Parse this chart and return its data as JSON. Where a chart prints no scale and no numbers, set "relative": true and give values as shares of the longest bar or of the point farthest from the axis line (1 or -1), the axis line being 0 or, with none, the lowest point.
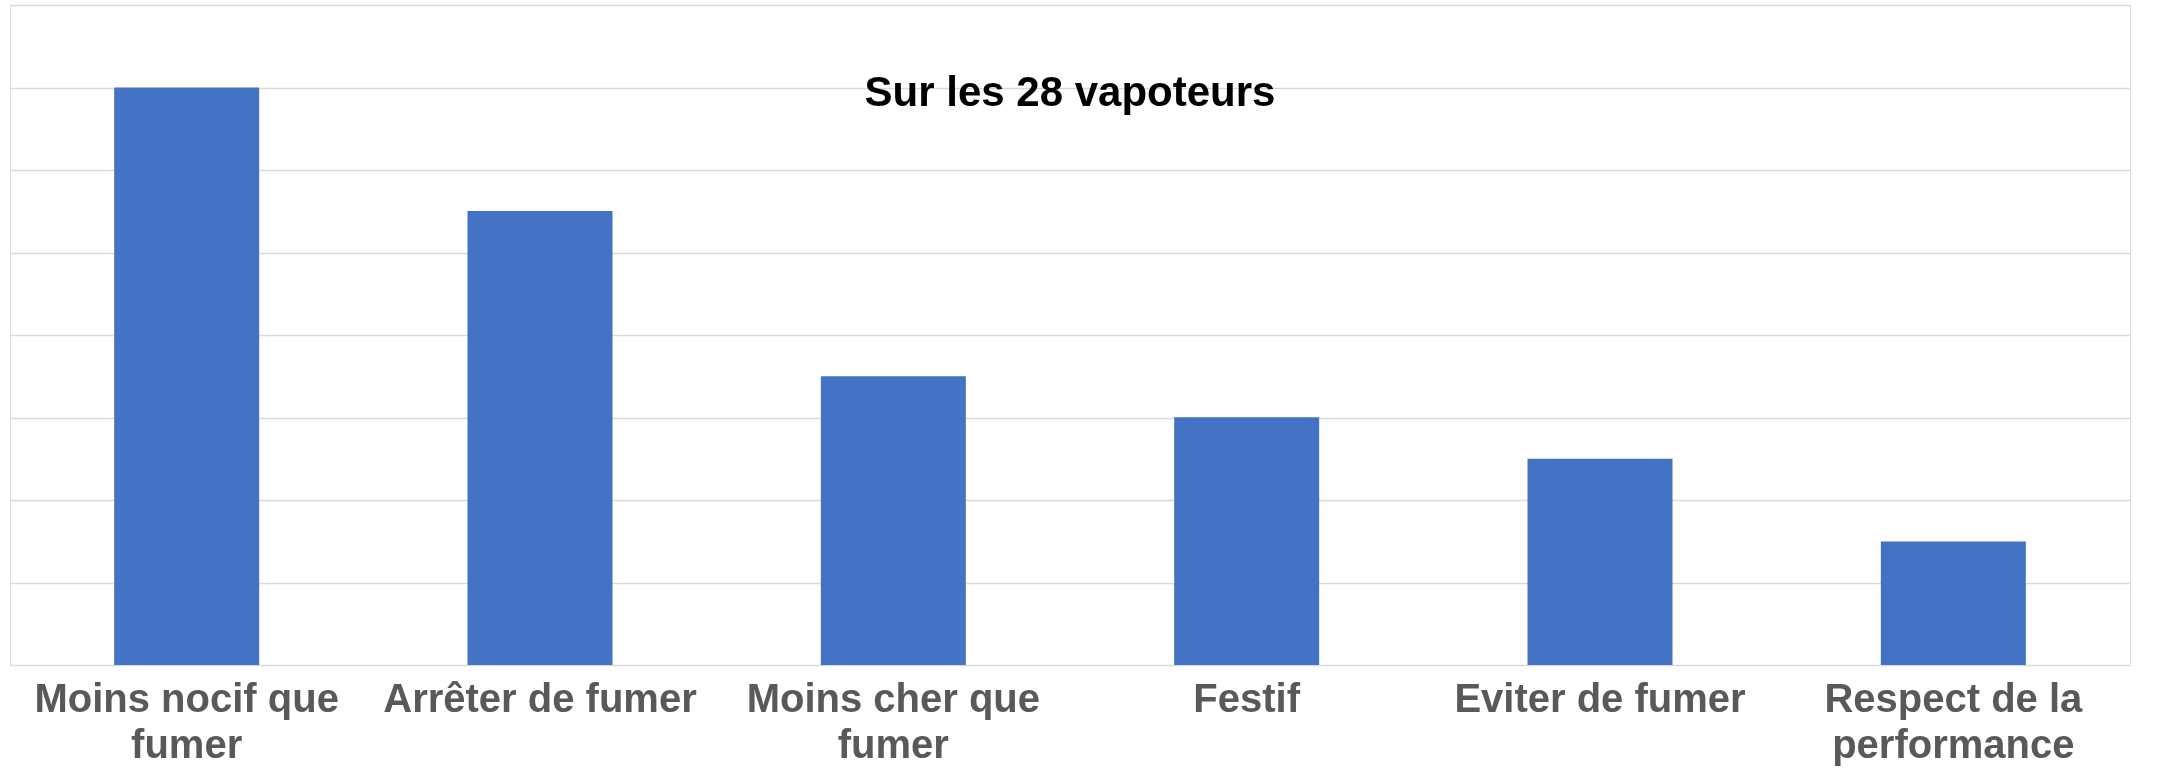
{
  "chart_data": {
    "type": "bar",
    "title": "Sur les 28 vapoteurs",
    "relative": true,
    "grid": "y",
    "categories": [
      "Moins nocif que fumer",
      "Arrêter de fumer",
      "Moins cher que fumer",
      "Festif",
      "Eviter de fumer",
      "Respect de la performance"
    ],
    "values": [
      1,
      0.786,
      0.5,
      0.429,
      0.357,
      0.214
    ],
    "color": "#4472c4"
  }
}
